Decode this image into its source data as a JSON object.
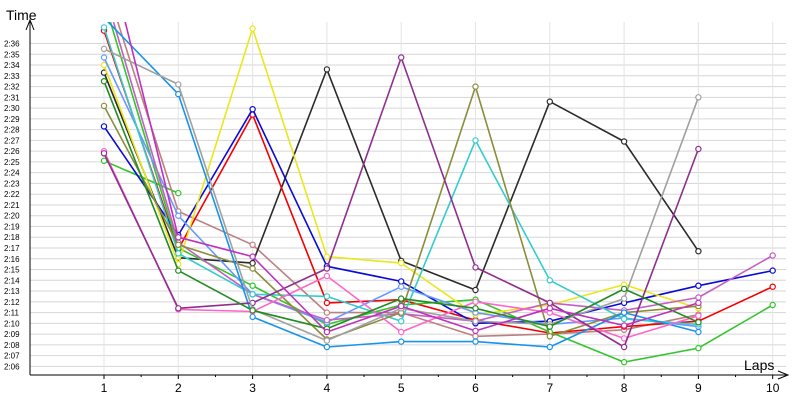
{
  "chart_data": {
    "type": "line",
    "ylabel": "Time",
    "xlabel": "Laps",
    "x": [
      1,
      2,
      3,
      4,
      5,
      6,
      7,
      8,
      9,
      10
    ],
    "ylim": [
      125.2,
      158
    ],
    "grid": true,
    "y_ticks": [
      {
        "v": 126,
        "label": "2:06"
      },
      {
        "v": 127,
        "label": "2:07"
      },
      {
        "v": 128,
        "label": "2:08"
      },
      {
        "v": 129,
        "label": "2:09"
      },
      {
        "v": 130,
        "label": "2:10"
      },
      {
        "v": 131,
        "label": "2:11"
      },
      {
        "v": 132,
        "label": "2:12"
      },
      {
        "v": 133,
        "label": "2:13"
      },
      {
        "v": 134,
        "label": "2:14"
      },
      {
        "v": 135,
        "label": "2:15"
      },
      {
        "v": 136,
        "label": "2:16"
      },
      {
        "v": 137,
        "label": "2:17"
      },
      {
        "v": 138,
        "label": "2:18"
      },
      {
        "v": 139,
        "label": "2:19"
      },
      {
        "v": 140,
        "label": "2:20"
      },
      {
        "v": 141,
        "label": "2:21"
      },
      {
        "v": 142,
        "label": "2:22"
      },
      {
        "v": 143,
        "label": "2:23"
      },
      {
        "v": 144,
        "label": "2:24"
      },
      {
        "v": 145,
        "label": "2:25"
      },
      {
        "v": 146,
        "label": "2:26"
      },
      {
        "v": 147,
        "label": "2:27"
      },
      {
        "v": 148,
        "label": "2:28"
      },
      {
        "v": 149,
        "label": "2:29"
      },
      {
        "v": 150,
        "label": "2:30"
      },
      {
        "v": 151,
        "label": "2:31"
      },
      {
        "v": 152,
        "label": "2:32"
      },
      {
        "v": 153,
        "label": "2:33"
      },
      {
        "v": 154,
        "label": "2:34"
      },
      {
        "v": 155,
        "label": "2:35"
      },
      {
        "v": 156,
        "label": "2:36"
      }
    ],
    "x_ticks": [
      "1",
      "2",
      "3",
      "4",
      "5",
      "6",
      "7",
      "8",
      "9",
      "10"
    ],
    "series": [
      {
        "color": "#33c62c",
        "values": [
          145.1,
          142.1,
          null,
          null,
          null,
          null,
          null,
          null,
          null,
          null
        ]
      },
      {
        "color": "#bd8080",
        "values": [
          162.0,
          140.4,
          137.3,
          131.0,
          131.0,
          128.8,
          129.0,
          129.4,
          130.8,
          null
        ]
      },
      {
        "color": "#2b2b2b",
        "values": [
          153.3,
          136.1,
          135.6,
          153.6,
          135.8,
          133.1,
          150.6,
          146.9,
          136.7,
          null
        ]
      },
      {
        "color": "#f40000",
        "values": [
          157.2,
          136.9,
          149.4,
          131.9,
          132.2,
          130.3,
          129.1,
          129.7,
          130.2,
          133.4
        ]
      },
      {
        "color": "#0a0ad6",
        "values": [
          148.3,
          138.2,
          149.9,
          135.3,
          133.9,
          130.0,
          130.2,
          131.9,
          133.5,
          134.9
        ]
      },
      {
        "color": "#33c62c",
        "values": [
          160.0,
          137.0,
          133.5,
          129.9,
          131.7,
          132.2,
          129.2,
          126.4,
          127.7,
          131.7
        ]
      },
      {
        "color": "#e8e81c",
        "values": [
          154.0,
          135.5,
          157.4,
          136.2,
          135.6,
          130.8,
          131.7,
          133.6,
          131.4,
          null
        ]
      },
      {
        "color": "#6699ff",
        "values": [
          154.7,
          140.0,
          132.7,
          130.1,
          133.4,
          131.0,
          129.9,
          130.5,
          129.7,
          null
        ]
      },
      {
        "color": "#c45fc4",
        "values": [
          161.0,
          137.5,
          132.7,
          130.3,
          130.9,
          130.2,
          131.9,
          131.2,
          132.4,
          136.3
        ]
      },
      {
        "color": "#34cccc",
        "values": [
          157.5,
          136.5,
          132.7,
          132.5,
          130.2,
          147.0,
          134.0,
          130.4,
          129.9,
          null
        ]
      },
      {
        "color": "#8c8c3c",
        "values": [
          150.2,
          137.3,
          135.1,
          128.5,
          131.0,
          152.0,
          128.8,
          131.0,
          131.6,
          null
        ]
      },
      {
        "color": "#1793eb",
        "values": [
          158.4,
          151.3,
          130.6,
          127.8,
          128.3,
          128.3,
          127.8,
          131.0,
          129.2,
          null
        ]
      },
      {
        "color": "#ff66cc",
        "values": [
          146.0,
          131.3,
          131.1,
          134.4,
          129.2,
          132.0,
          131.0,
          128.6,
          130.7,
          null
        ]
      },
      {
        "color": "#8e2f8e",
        "values": [
          145.8,
          131.4,
          131.9,
          135.1,
          154.7,
          135.2,
          131.9,
          127.8,
          146.2,
          null
        ]
      },
      {
        "color": "#a0a0a0",
        "values": [
          155.5,
          152.2,
          131.3,
          128.4,
          131.4,
          130.2,
          129.9,
          132.3,
          151.0,
          null
        ]
      },
      {
        "color": "#228b22",
        "values": [
          152.5,
          134.9,
          131.2,
          129.5,
          132.3,
          131.4,
          129.7,
          133.2,
          130.1,
          null
        ]
      },
      {
        "color": "#bf30bf",
        "values": [
          166.0,
          138.0,
          136.2,
          129.2,
          131.6,
          129.3,
          131.4,
          129.8,
          131.9,
          null
        ]
      }
    ]
  }
}
